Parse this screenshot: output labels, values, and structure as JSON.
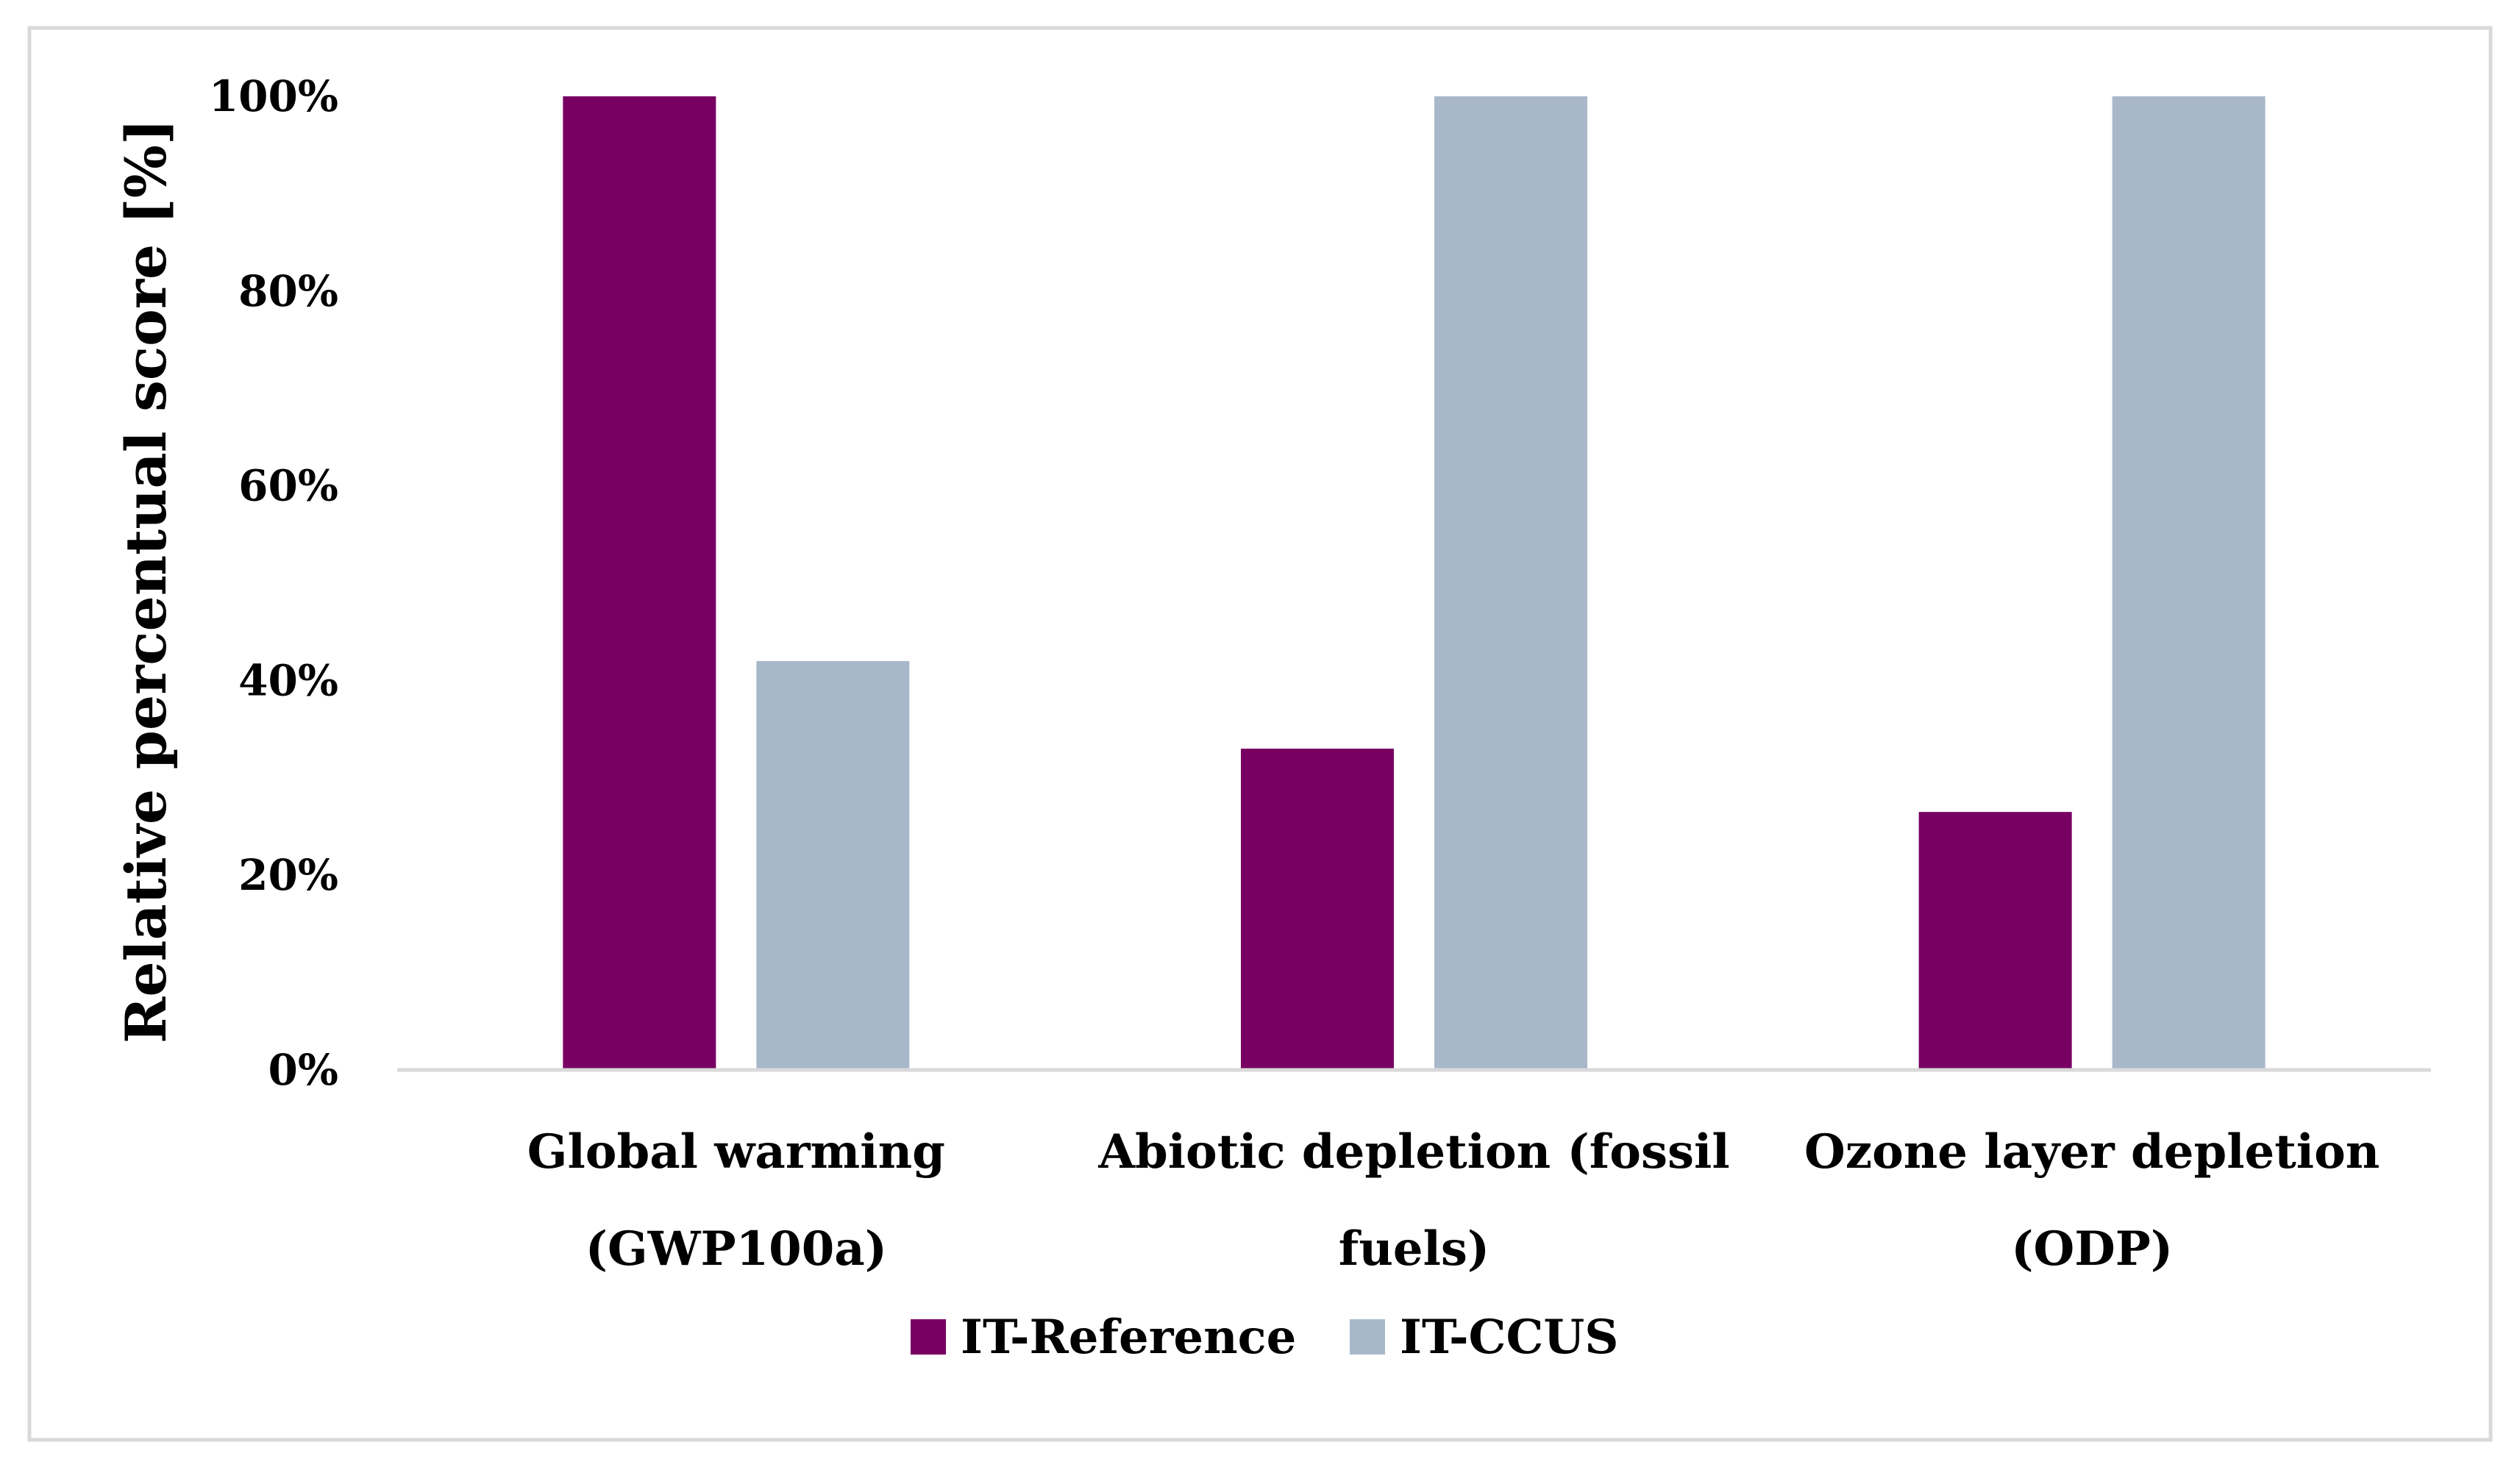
{
  "chart_data": {
    "type": "bar",
    "title": "",
    "xlabel": "",
    "ylabel": "Relative percentual score [%]",
    "ylim": [
      0,
      100
    ],
    "yticks": [
      "0%",
      "20%",
      "40%",
      "60%",
      "80%",
      "100%"
    ],
    "ytick_values": [
      0,
      20,
      40,
      60,
      80,
      100
    ],
    "grid": false,
    "legend_position": "bottom",
    "categories": [
      [
        "Global warming",
        "(GWP100a)"
      ],
      [
        "Abiotic depletion (fossil",
        "fuels)"
      ],
      [
        "Ozone layer depletion",
        "(ODP)"
      ]
    ],
    "series": [
      {
        "name": "IT-Reference",
        "color": "#780062",
        "values": [
          100,
          33,
          26.5
        ]
      },
      {
        "name": "IT-CCUS",
        "color": "#A8B8CA",
        "values": [
          42,
          100,
          100
        ]
      }
    ]
  },
  "colors": {
    "frame": "#D9D9D9",
    "axis": "#D9D9D9"
  }
}
